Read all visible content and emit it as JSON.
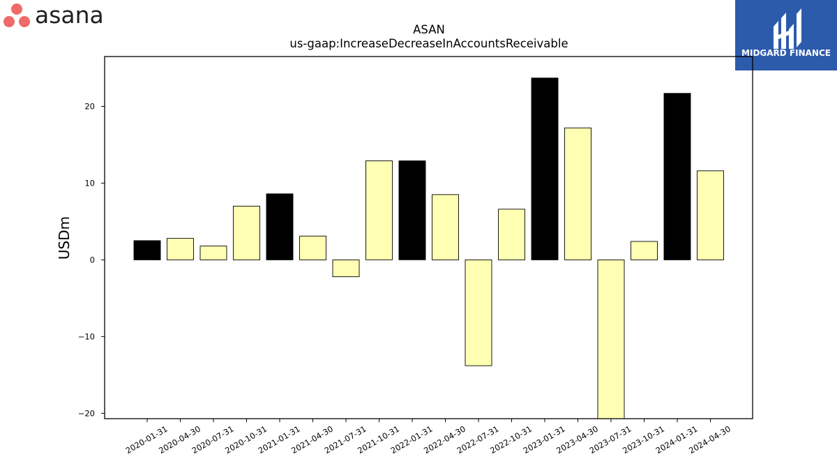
{
  "brand": {
    "left_logo_text": "asana",
    "right_logo_text": "MIDGARD FINANCE",
    "right_logo_bg": "#2d5bab"
  },
  "chart_data": {
    "type": "bar",
    "title": "ASAN",
    "subtitle": "us-gaap:IncreaseDecreaseInAccountsReceivable",
    "xlabel": "",
    "ylabel": "USDm",
    "ylim": [
      -20.7,
      26.5
    ],
    "yticks": [
      -20,
      -10,
      0,
      10,
      20
    ],
    "ytick_labels": [
      "−20",
      "−10",
      "0",
      "10",
      "20"
    ],
    "grid": false,
    "categories": [
      "2020-01-31",
      "2020-04-30",
      "2020-07-31",
      "2020-10-31",
      "2021-01-31",
      "2021-04-30",
      "2021-07-31",
      "2021-10-31",
      "2022-01-31",
      "2022-04-30",
      "2022-07-31",
      "2022-10-31",
      "2023-01-31",
      "2023-04-30",
      "2023-07-31",
      "2023-10-31",
      "2024-01-31",
      "2024-04-30"
    ],
    "values": [
      2.5,
      2.8,
      1.8,
      7.0,
      8.6,
      3.1,
      -2.2,
      12.9,
      12.9,
      8.5,
      -13.8,
      6.6,
      23.7,
      17.2,
      -21.0,
      2.4,
      21.7,
      11.6
    ],
    "colors": {
      "highlight": "#000000",
      "normal": "#ffffb3",
      "edge": "#000000"
    },
    "highlight_categories": [
      "2020-01-31",
      "2021-01-31",
      "2022-01-31",
      "2023-01-31",
      "2024-01-31"
    ]
  }
}
